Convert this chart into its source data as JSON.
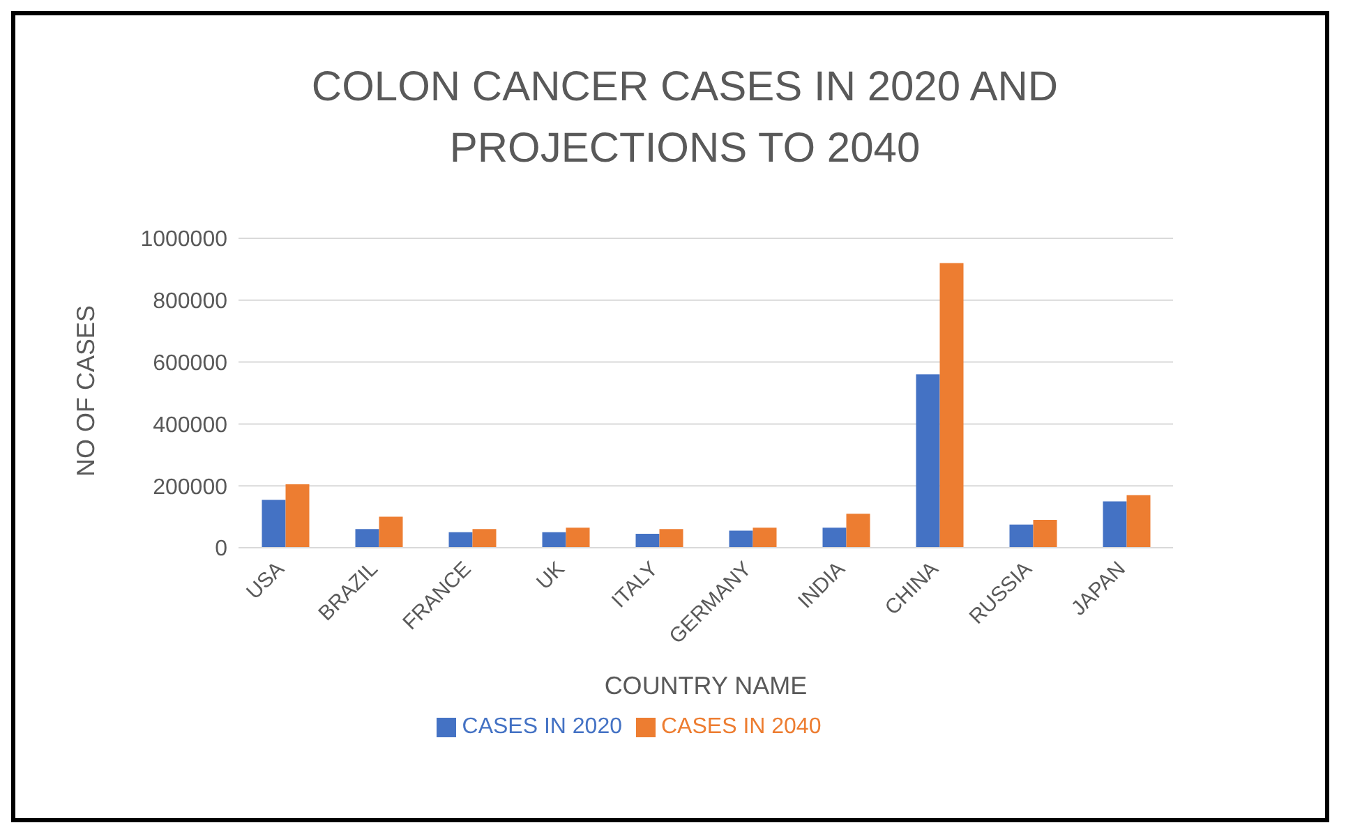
{
  "chart_data": {
    "type": "bar",
    "title": "COLON CANCER CASES IN 2020 AND PROJECTIONS TO 2040",
    "xlabel": "COUNTRY NAME",
    "ylabel": "NO OF CASES",
    "categories": [
      "USA",
      "BRAZIL",
      "FRANCE",
      "UK",
      "ITALY",
      "GERMANY",
      "INDIA",
      "CHINA",
      "RUSSIA",
      "JAPAN"
    ],
    "series": [
      {
        "name": "CASES IN 2020",
        "color": "#4472c4",
        "values": [
          155000,
          60000,
          50000,
          50000,
          45000,
          55000,
          65000,
          560000,
          75000,
          150000
        ]
      },
      {
        "name": "CASES IN 2040",
        "color": "#ed7d31",
        "values": [
          205000,
          100000,
          60000,
          65000,
          60000,
          65000,
          110000,
          920000,
          90000,
          170000
        ]
      }
    ],
    "ylim": [
      0,
      1000000
    ],
    "yticks": [
      0,
      200000,
      400000,
      600000,
      800000,
      1000000
    ],
    "grid": "y",
    "legend": "bottom"
  }
}
